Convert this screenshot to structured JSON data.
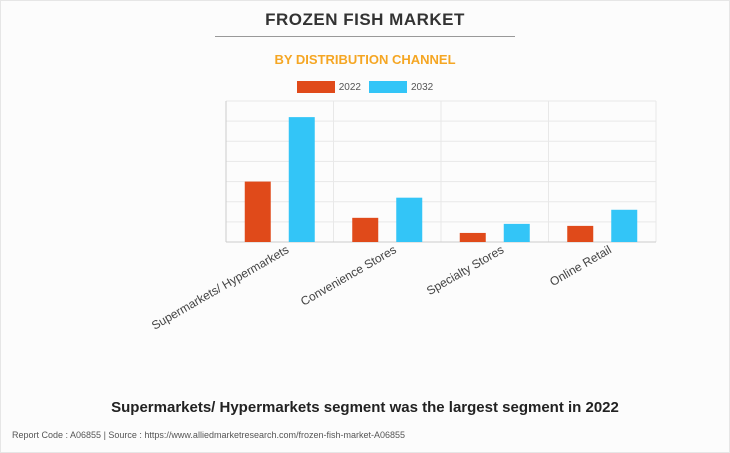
{
  "title": "FROZEN FISH MARKET",
  "subtitle": "BY DISTRIBUTION CHANNEL",
  "caption": "Supermarkets/ Hypermarkets segment was the largest segment in 2022",
  "footer": "Report Code : A06855  |  Source : https://www.alliedmarketresearch.com/frozen-fish-market-A06855",
  "colors": {
    "title": "#333333",
    "subtitle": "#f5a623",
    "series_2022": "#e04a1a",
    "series_2032": "#33c5f7"
  },
  "chart_data": {
    "type": "bar",
    "title": "FROZEN FISH MARKET",
    "subtitle": "BY DISTRIBUTION CHANNEL",
    "categories": [
      "Supermarkets/ Hypermarkets",
      "Convenience Stores",
      "Specialty Stores",
      "Online Retail"
    ],
    "series": [
      {
        "name": "2022",
        "color": "#e04a1a",
        "values": [
          3.0,
          1.2,
          0.45,
          0.8
        ]
      },
      {
        "name": "2032",
        "color": "#33c5f7",
        "values": [
          6.2,
          2.2,
          0.9,
          1.6
        ]
      }
    ],
    "ylim": [
      0,
      7
    ],
    "y_tick_labels_shown": false,
    "grid": true,
    "legend": "top-center"
  }
}
